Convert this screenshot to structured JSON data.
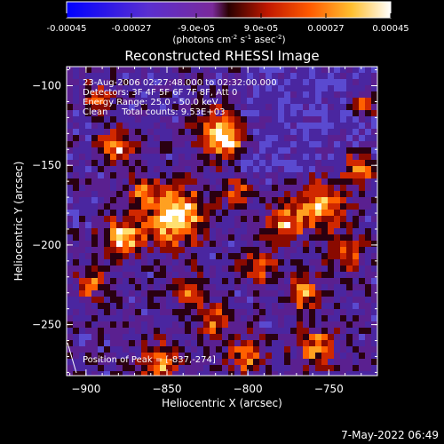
{
  "colorbar": {
    "tick_labels": [
      "-0.00045",
      "-0.00027",
      "-9.0e-05",
      "9.0e-05",
      "0.00027",
      "0.00045"
    ],
    "units_prefix": "(photons cm",
    "units_sup1": "-2",
    "units_mid1": " s",
    "units_sup2": "-1",
    "units_mid2": " asec",
    "units_sup3": "-2",
    "units_suffix": ")"
  },
  "plot": {
    "title": "Reconstructed RHESSI Image",
    "xlabel": "Heliocentric X (arcsec)",
    "ylabel": "Heliocentric Y (arcsec)",
    "xlim": [
      -912,
      -720
    ],
    "ylim": [
      -282,
      -88
    ],
    "xticks": [
      -900,
      -850,
      -800,
      -750
    ],
    "yticks": [
      -100,
      -150,
      -200,
      -250
    ],
    "xtick_labels": [
      "−900",
      "−850",
      "−800",
      "−750"
    ],
    "ytick_labels": [
      "−100",
      "−150",
      "−200",
      "−250"
    ],
    "annotations": [
      "23-Aug-2006 02:27:48.000 to 02:32:00.000",
      "Detectors: 3F 4F 5F 6F 7F 8F, Att 0",
      "Energy Range: 25.0 - 50.0 keV",
      "Clean     Total counts: 9.53E+03"
    ],
    "peak_label": "Position of Peak = [-837,-274]"
  },
  "footer": {
    "timestamp": "7-May-2022 06:49"
  },
  "colors": {
    "background": "#000000",
    "text": "#ffffff"
  }
}
